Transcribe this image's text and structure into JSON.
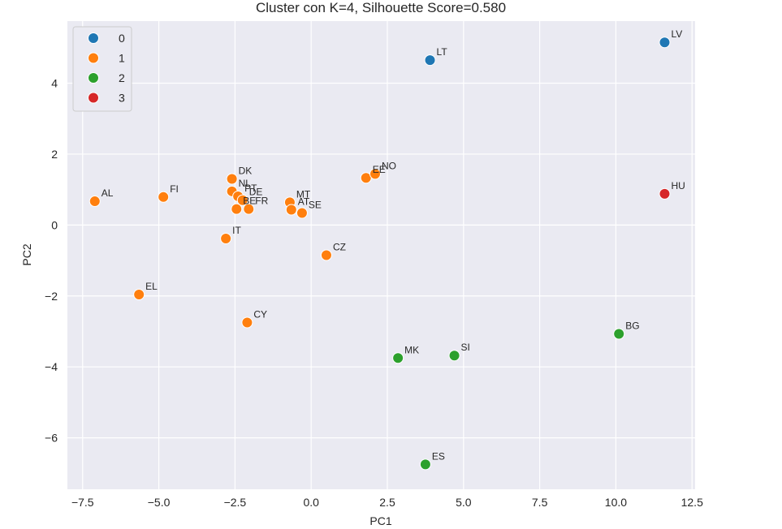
{
  "chart_data": {
    "type": "scatter",
    "title": "Cluster con K=4, Silhouette Score=0.580",
    "xlabel": "PC1",
    "ylabel": "PC2",
    "xlim": [
      -8.0,
      12.6
    ],
    "ylim": [
      -7.45,
      5.75
    ],
    "xticks": [
      -7.5,
      -5.0,
      -2.5,
      0.0,
      2.5,
      5.0,
      7.5,
      10.0,
      12.5
    ],
    "xtick_labels": [
      "−7.5",
      "−5.0",
      "−2.5",
      "0.0",
      "2.5",
      "5.0",
      "7.5",
      "10.0",
      "12.5"
    ],
    "yticks": [
      -6,
      -4,
      -2,
      0,
      2,
      4
    ],
    "ytick_labels": [
      "−6",
      "−4",
      "−2",
      "0",
      "2",
      "4"
    ],
    "grid": true,
    "legend_position": "top-left",
    "legend": [
      {
        "label": "0",
        "color": "#1f77b4"
      },
      {
        "label": "1",
        "color": "#ff7f0e"
      },
      {
        "label": "2",
        "color": "#2ca02c"
      },
      {
        "label": "3",
        "color": "#d62728"
      }
    ],
    "points": [
      {
        "label": "LV",
        "x": 11.6,
        "y": 5.15,
        "cluster": 0
      },
      {
        "label": "LT",
        "x": 3.9,
        "y": 4.65,
        "cluster": 0
      },
      {
        "label": "AL",
        "x": -7.1,
        "y": 0.67,
        "cluster": 1
      },
      {
        "label": "FI",
        "x": -4.85,
        "y": 0.79,
        "cluster": 1
      },
      {
        "label": "DK",
        "x": -2.6,
        "y": 1.3,
        "cluster": 1
      },
      {
        "label": "NL",
        "x": -2.6,
        "y": 0.95,
        "cluster": 1
      },
      {
        "label": "PT",
        "x": -2.4,
        "y": 0.81,
        "cluster": 1
      },
      {
        "label": "DE",
        "x": -2.25,
        "y": 0.7,
        "cluster": 1
      },
      {
        "label": "BE",
        "x": -2.45,
        "y": 0.45,
        "cluster": 1
      },
      {
        "label": "FR",
        "x": -2.05,
        "y": 0.45,
        "cluster": 1
      },
      {
        "label": "MT",
        "x": -0.7,
        "y": 0.64,
        "cluster": 1
      },
      {
        "label": "AT",
        "x": -0.65,
        "y": 0.43,
        "cluster": 1
      },
      {
        "label": "SE",
        "x": -0.3,
        "y": 0.34,
        "cluster": 1
      },
      {
        "label": "EE",
        "x": 1.8,
        "y": 1.33,
        "cluster": 1
      },
      {
        "label": "NO",
        "x": 2.1,
        "y": 1.44,
        "cluster": 1
      },
      {
        "label": "IT",
        "x": -2.8,
        "y": -0.38,
        "cluster": 1
      },
      {
        "label": "CZ",
        "x": 0.5,
        "y": -0.85,
        "cluster": 1
      },
      {
        "label": "EL",
        "x": -5.65,
        "y": -1.96,
        "cluster": 1
      },
      {
        "label": "CY",
        "x": -2.1,
        "y": -2.75,
        "cluster": 1
      },
      {
        "label": "MK",
        "x": 2.85,
        "y": -3.75,
        "cluster": 2
      },
      {
        "label": "SI",
        "x": 4.7,
        "y": -3.68,
        "cluster": 2
      },
      {
        "label": "BG",
        "x": 10.1,
        "y": -3.07,
        "cluster": 2
      },
      {
        "label": "ES",
        "x": 3.75,
        "y": -6.75,
        "cluster": 2
      },
      {
        "label": "HU",
        "x": 11.6,
        "y": 0.88,
        "cluster": 3
      }
    ]
  }
}
